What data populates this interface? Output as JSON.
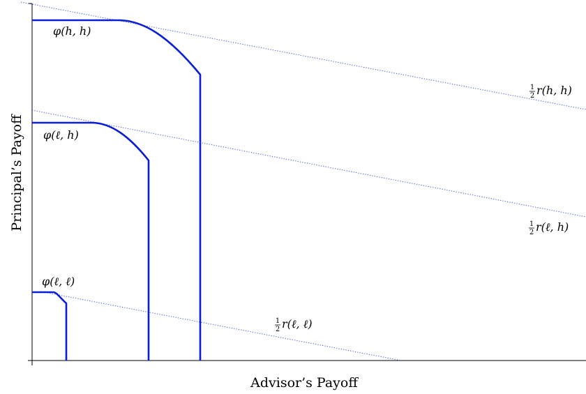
{
  "axes": {
    "x_label": "Advisor’s Payoff",
    "y_label": "Principal’s Payoff"
  },
  "frontiers": [
    {
      "id": "hh",
      "label": "φ(h, h)"
    },
    {
      "id": "lh",
      "label": "φ(ℓ, h)"
    },
    {
      "id": "ll",
      "label": "φ(ℓ, ℓ)"
    }
  ],
  "reference_lines": [
    {
      "id": "hh",
      "label": "r(h, h)",
      "coefficient": "1/2",
      "coef_num": "1",
      "coef_den": "2"
    },
    {
      "id": "lh",
      "label": "r(ℓ, h)",
      "coefficient": "1/2",
      "coef_num": "1",
      "coef_den": "2"
    },
    {
      "id": "ll",
      "label": "r(ℓ, ℓ)",
      "coefficient": "1/2",
      "coef_num": "1",
      "coef_den": "2"
    }
  ],
  "colors": {
    "frontier": "#0a1ed8",
    "reference_line": "#3a4fe0",
    "axis": "#000000"
  }
}
